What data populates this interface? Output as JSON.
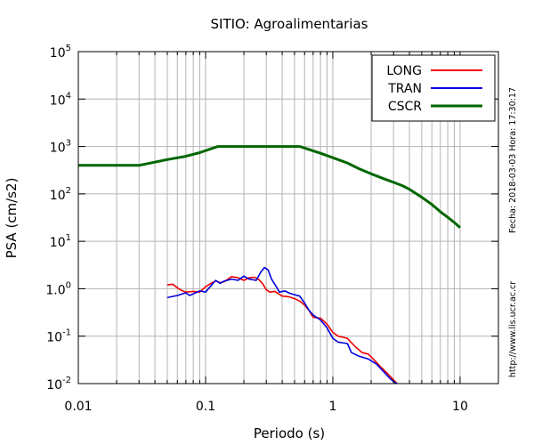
{
  "chart_data": {
    "type": "line",
    "title": "SITIO: Agroalimentarias",
    "xlabel": "Periodo (s)",
    "ylabel": "PSA (cm/s2)",
    "xscale": "log",
    "yscale": "log",
    "xlim": [
      0.01,
      20
    ],
    "ylim": [
      0.01,
      100000
    ],
    "x_ticks": [
      {
        "value": 0.01,
        "label": "0.01"
      },
      {
        "value": 0.1,
        "label": "0.1"
      },
      {
        "value": 1,
        "label": "1"
      },
      {
        "value": 10,
        "label": "10"
      }
    ],
    "y_ticks": [
      {
        "value": 0.01,
        "base": "10",
        "exp": "-2"
      },
      {
        "value": 0.1,
        "base": "10",
        "exp": "-1"
      },
      {
        "value": 1,
        "base": "1.0",
        "exp": "0"
      },
      {
        "value": 10,
        "base": "10",
        "exp": "1"
      },
      {
        "value": 100,
        "base": "10",
        "exp": "2"
      },
      {
        "value": 1000,
        "base": "10",
        "exp": "3"
      },
      {
        "value": 10000,
        "base": "10",
        "exp": "4"
      },
      {
        "value": 100000,
        "base": "10",
        "exp": "5"
      }
    ],
    "grid": true,
    "legend_position": "top-right",
    "series": [
      {
        "name": "LONG",
        "color": "#ee0000",
        "points": [
          [
            0.05,
            1.2
          ],
          [
            0.055,
            1.25
          ],
          [
            0.06,
            1.05
          ],
          [
            0.065,
            0.92
          ],
          [
            0.07,
            0.85
          ],
          [
            0.08,
            0.88
          ],
          [
            0.09,
            0.85
          ],
          [
            0.1,
            1.1
          ],
          [
            0.11,
            1.3
          ],
          [
            0.12,
            1.45
          ],
          [
            0.13,
            1.35
          ],
          [
            0.14,
            1.4
          ],
          [
            0.16,
            1.8
          ],
          [
            0.18,
            1.7
          ],
          [
            0.2,
            1.5
          ],
          [
            0.22,
            1.7
          ],
          [
            0.24,
            1.75
          ],
          [
            0.26,
            1.6
          ],
          [
            0.28,
            1.3
          ],
          [
            0.3,
            0.95
          ],
          [
            0.32,
            0.85
          ],
          [
            0.35,
            0.88
          ],
          [
            0.4,
            0.7
          ],
          [
            0.45,
            0.68
          ],
          [
            0.5,
            0.62
          ],
          [
            0.55,
            0.55
          ],
          [
            0.6,
            0.45
          ],
          [
            0.65,
            0.35
          ],
          [
            0.7,
            0.25
          ],
          [
            0.8,
            0.24
          ],
          [
            0.9,
            0.18
          ],
          [
            1.0,
            0.12
          ],
          [
            1.1,
            0.1
          ],
          [
            1.2,
            0.095
          ],
          [
            1.3,
            0.09
          ],
          [
            1.5,
            0.06
          ],
          [
            1.7,
            0.045
          ],
          [
            1.9,
            0.042
          ],
          [
            2.1,
            0.032
          ],
          [
            2.4,
            0.022
          ],
          [
            2.7,
            0.016
          ],
          [
            3.0,
            0.012
          ],
          [
            3.2,
            0.01
          ]
        ]
      },
      {
        "name": "TRAN",
        "color": "#0000dd",
        "points": [
          [
            0.05,
            0.65
          ],
          [
            0.06,
            0.72
          ],
          [
            0.07,
            0.82
          ],
          [
            0.075,
            0.72
          ],
          [
            0.08,
            0.78
          ],
          [
            0.09,
            0.9
          ],
          [
            0.1,
            0.85
          ],
          [
            0.11,
            1.15
          ],
          [
            0.12,
            1.5
          ],
          [
            0.13,
            1.3
          ],
          [
            0.14,
            1.45
          ],
          [
            0.16,
            1.6
          ],
          [
            0.18,
            1.5
          ],
          [
            0.2,
            1.85
          ],
          [
            0.22,
            1.6
          ],
          [
            0.25,
            1.5
          ],
          [
            0.27,
            2.2
          ],
          [
            0.29,
            2.8
          ],
          [
            0.31,
            2.5
          ],
          [
            0.33,
            1.6
          ],
          [
            0.36,
            1.1
          ],
          [
            0.38,
            0.85
          ],
          [
            0.42,
            0.9
          ],
          [
            0.46,
            0.8
          ],
          [
            0.5,
            0.75
          ],
          [
            0.55,
            0.7
          ],
          [
            0.6,
            0.5
          ],
          [
            0.65,
            0.35
          ],
          [
            0.7,
            0.28
          ],
          [
            0.8,
            0.22
          ],
          [
            0.9,
            0.15
          ],
          [
            1.0,
            0.09
          ],
          [
            1.1,
            0.075
          ],
          [
            1.3,
            0.07
          ],
          [
            1.4,
            0.045
          ],
          [
            1.6,
            0.038
          ],
          [
            1.9,
            0.033
          ],
          [
            2.2,
            0.026
          ],
          [
            2.5,
            0.018
          ],
          [
            2.8,
            0.013
          ],
          [
            3.0,
            0.011
          ],
          [
            3.2,
            0.01
          ]
        ]
      },
      {
        "name": "CSCR",
        "color": "#006600",
        "points": [
          [
            0.01,
            400
          ],
          [
            0.03,
            400
          ],
          [
            0.05,
            530
          ],
          [
            0.07,
            620
          ],
          [
            0.09,
            740
          ],
          [
            0.125,
            1000
          ],
          [
            0.3,
            1000
          ],
          [
            0.55,
            1000
          ],
          [
            0.8,
            720
          ],
          [
            1.0,
            580
          ],
          [
            1.3,
            450
          ],
          [
            1.6,
            340
          ],
          [
            2.0,
            265
          ],
          [
            2.5,
            210
          ],
          [
            3.0,
            175
          ],
          [
            3.5,
            150
          ],
          [
            4.0,
            125
          ],
          [
            5.0,
            85
          ],
          [
            6.0,
            60
          ],
          [
            7.0,
            42
          ],
          [
            8.0,
            32
          ],
          [
            9.0,
            25
          ],
          [
            10.0,
            19.5
          ]
        ]
      }
    ]
  },
  "side_labels": {
    "date": "Fecha: 2018-03-03  Hora: 17:30:17",
    "url": "http://www.lis.ucr.ac.cr"
  }
}
